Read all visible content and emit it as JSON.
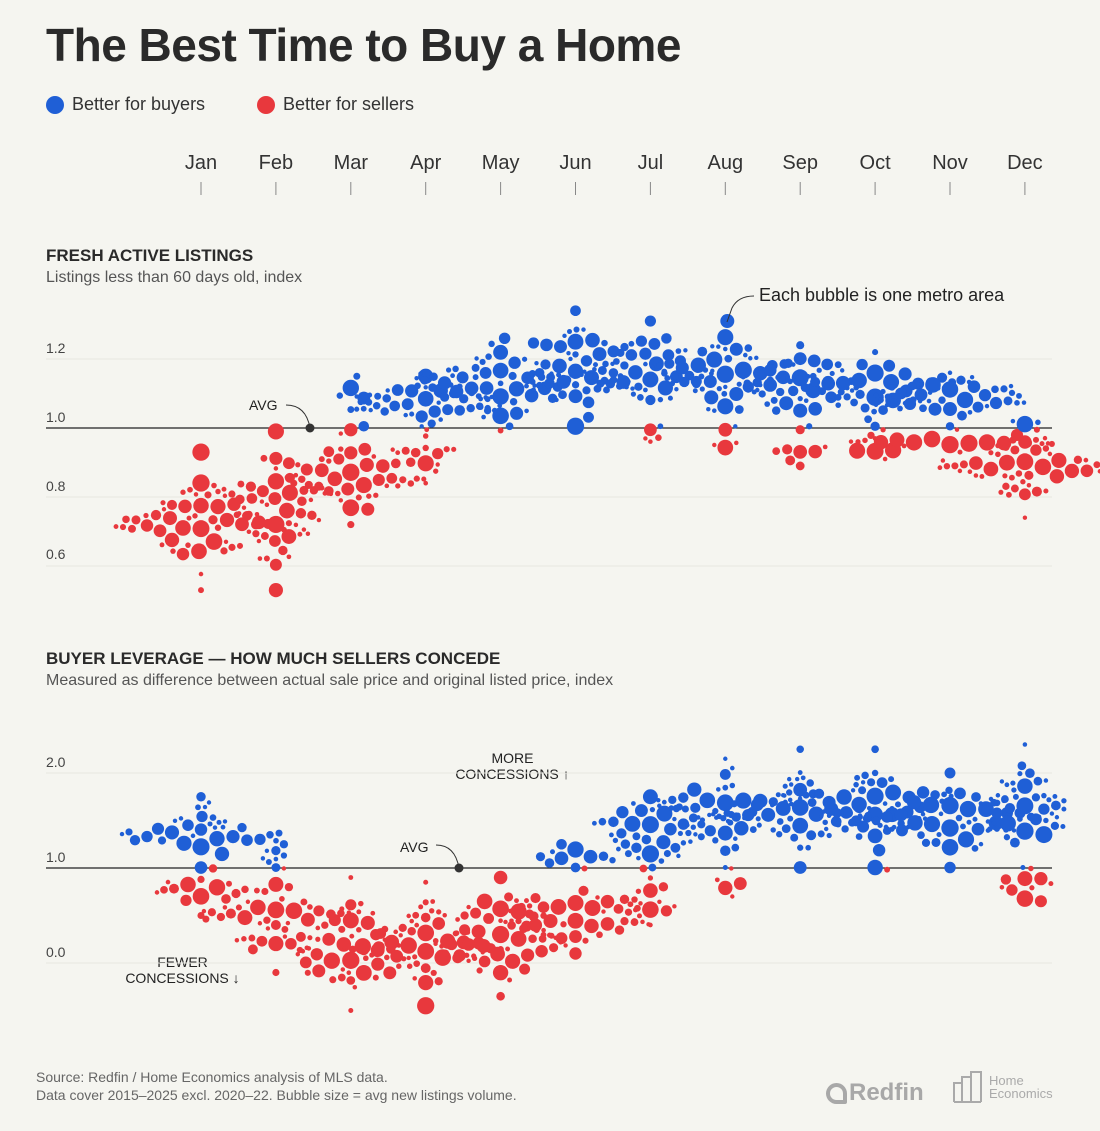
{
  "title": "The Best Time to Buy a Home",
  "legend": [
    {
      "label": "Better for buyers",
      "color": "#1f5fd6"
    },
    {
      "label": "Better for sellers",
      "color": "#e8383d"
    }
  ],
  "months": [
    "Jan",
    "Feb",
    "Mar",
    "Apr",
    "May",
    "Jun",
    "Jul",
    "Aug",
    "Sep",
    "Oct",
    "Nov",
    "Dec"
  ],
  "chart_data": [
    {
      "type": "scatter",
      "title": "FRESH ACTIVE LISTINGS",
      "subtitle": "Listings less than 60 days old, index",
      "yticks": [
        "0.6",
        "0.8",
        "1.0",
        "1.2"
      ],
      "ylim": [
        0.5,
        1.38
      ],
      "avg": 1.0,
      "avg_label": "AVG",
      "annotation": "Each bubble is one metro area",
      "months": [
        {
          "month": "Jan",
          "min": 0.53,
          "max": 0.93,
          "buyers": 0,
          "sellers": 55
        },
        {
          "month": "Feb",
          "min": 0.53,
          "max": 0.99,
          "buyers": 0,
          "sellers": 50
        },
        {
          "month": "Mar",
          "min": 0.72,
          "max": 1.15,
          "buyers": 6,
          "sellers": 45
        },
        {
          "month": "Apr",
          "min": 0.84,
          "max": 1.15,
          "buyers": 45,
          "sellers": 15
        },
        {
          "month": "May",
          "min": 0.99,
          "max": 1.26,
          "buyers": 55,
          "sellers": 1
        },
        {
          "month": "Jun",
          "min": 1.0,
          "max": 1.34,
          "buyers": 55,
          "sellers": 0
        },
        {
          "month": "Jul",
          "min": 0.95,
          "max": 1.31,
          "buyers": 50,
          "sellers": 4
        },
        {
          "month": "Aug",
          "min": 0.9,
          "max": 1.31,
          "buyers": 50,
          "sellers": 4
        },
        {
          "month": "Sep",
          "min": 0.89,
          "max": 1.24,
          "buyers": 45,
          "sellers": 8
        },
        {
          "month": "Oct",
          "min": 0.91,
          "max": 1.22,
          "buyers": 45,
          "sellers": 8
        },
        {
          "month": "Nov",
          "min": 0.93,
          "max": 1.16,
          "buyers": 40,
          "sellers": 20
        },
        {
          "month": "Dec",
          "min": 0.74,
          "max": 1.02,
          "buyers": 3,
          "sellers": 50
        }
      ]
    },
    {
      "type": "scatter",
      "title": "BUYER LEVERAGE — HOW MUCH SELLERS CONCEDE",
      "subtitle": "Measured as difference between actual sale price and original listed price, index",
      "yticks": [
        "0.0",
        "1.0",
        "2.0"
      ],
      "ylim": [
        -0.6,
        2.4
      ],
      "avg": 1.0,
      "avg_label": "AVG",
      "annotation_more": [
        "MORE",
        "CONCESSIONS ↑"
      ],
      "annotation_fewer": [
        "FEWER",
        "CONCESSIONS ↓"
      ],
      "months": [
        {
          "month": "Jan",
          "min": 0.5,
          "max": 1.75,
          "buyers": 35,
          "sellers": 15
        },
        {
          "month": "Feb",
          "min": -0.1,
          "max": 1.25,
          "buyers": 8,
          "sellers": 45
        },
        {
          "month": "Mar",
          "min": -0.5,
          "max": 0.9,
          "buyers": 0,
          "sellers": 50
        },
        {
          "month": "Apr",
          "min": -0.45,
          "max": 0.85,
          "buyers": 0,
          "sellers": 50
        },
        {
          "month": "May",
          "min": -0.35,
          "max": 0.9,
          "buyers": 0,
          "sellers": 50
        },
        {
          "month": "Jun",
          "min": 0.1,
          "max": 1.25,
          "buyers": 10,
          "sellers": 45
        },
        {
          "month": "Jul",
          "min": 0.4,
          "max": 1.75,
          "buyers": 40,
          "sellers": 12
        },
        {
          "month": "Aug",
          "min": 0.7,
          "max": 2.15,
          "buyers": 50,
          "sellers": 5
        },
        {
          "month": "Sep",
          "min": 1.0,
          "max": 2.25,
          "buyers": 55,
          "sellers": 0
        },
        {
          "month": "Oct",
          "min": 0.97,
          "max": 2.25,
          "buyers": 55,
          "sellers": 1
        },
        {
          "month": "Nov",
          "min": 0.93,
          "max": 2.0,
          "buyers": 50,
          "sellers": 0
        },
        {
          "month": "Dec",
          "min": 0.65,
          "max": 2.3,
          "buyers": 45,
          "sellers": 10
        }
      ]
    }
  ],
  "footer": {
    "source": "Source: Redfin / Home Economics analysis of MLS data.",
    "note": "Data cover 2015–2025 excl. 2020–22. Bubble size = avg new listings volume.",
    "logo1": "Redfin",
    "logo2": [
      "Home",
      "Economics"
    ]
  }
}
